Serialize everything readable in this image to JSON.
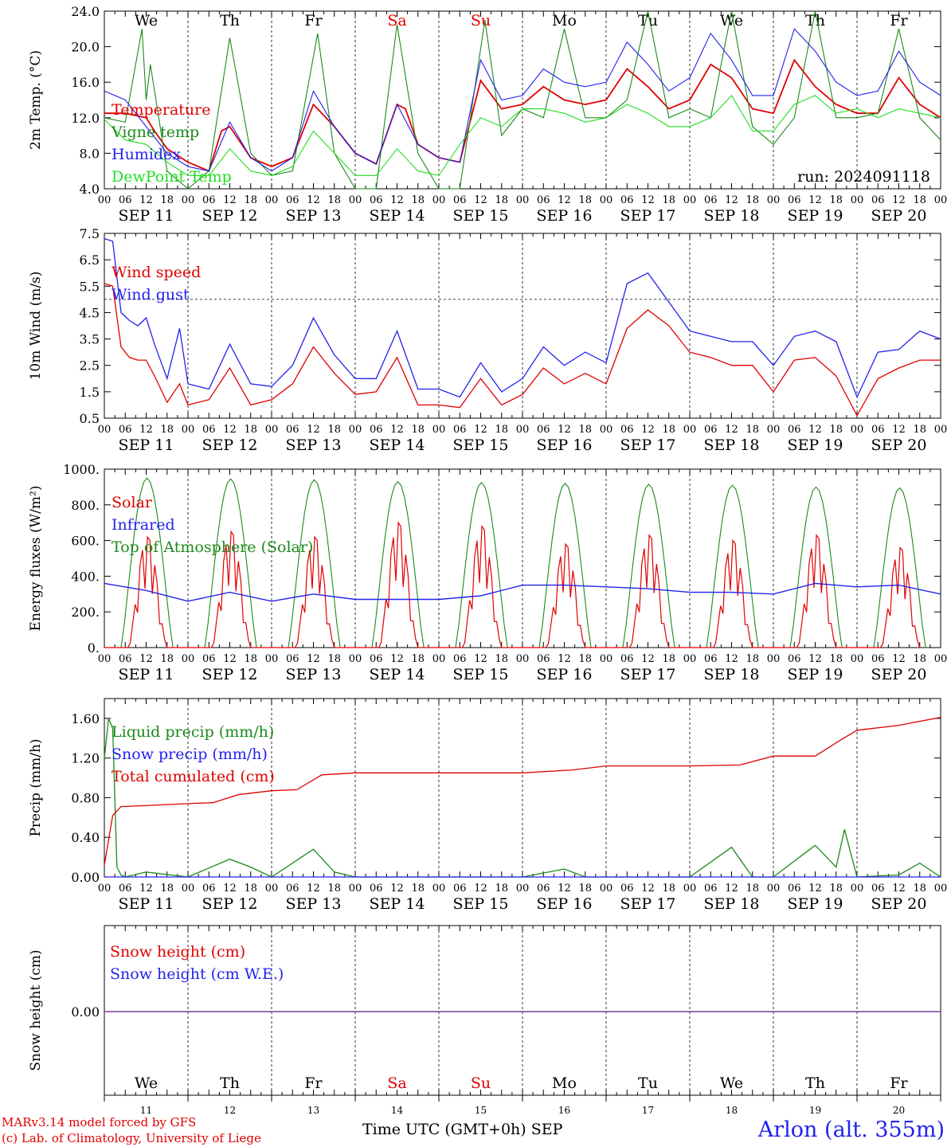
{
  "run_label": "run: 2024091118",
  "weekdays": [
    {
      "name": "We",
      "color": "#000000"
    },
    {
      "name": "Th",
      "color": "#000000"
    },
    {
      "name": "Fr",
      "color": "#000000"
    },
    {
      "name": "Sa",
      "color": "#e00000"
    },
    {
      "name": "Su",
      "color": "#e00000"
    },
    {
      "name": "Mo",
      "color": "#000000"
    },
    {
      "name": "Tu",
      "color": "#000000"
    },
    {
      "name": "We",
      "color": "#000000"
    },
    {
      "name": "Th",
      "color": "#000000"
    },
    {
      "name": "Fr",
      "color": "#000000"
    }
  ],
  "dates": [
    "SEP 11",
    "SEP 12",
    "SEP 13",
    "SEP 14",
    "SEP 15",
    "SEP 16",
    "SEP 17",
    "SEP 18",
    "SEP 19",
    "SEP 20"
  ],
  "day_numbers": [
    "11",
    "12",
    "13",
    "14",
    "15",
    "16",
    "17",
    "18",
    "19",
    "20"
  ],
  "hour_labels": [
    "00",
    "06",
    "12",
    "18"
  ],
  "footer": {
    "model": "MARv3.14 model forced by GFS",
    "lab": "(c) Lab. of Climatology, University of Liege",
    "axis": "Time UTC (GMT+0h) SEP",
    "station": "Arlon (alt. 355m)"
  },
  "chart_data": [
    {
      "type": "line",
      "ylabel": "2m Temp. (°C)",
      "ylim": [
        4,
        24
      ],
      "yticks": [
        "24.0",
        "20.0",
        "16.0",
        "12.0",
        "8.0",
        "4.0"
      ],
      "x_unit": "day offset from 2024-09-11 00 UTC",
      "series": [
        {
          "name": "Temperature",
          "color": "#e00000",
          "x": [
            0,
            0.25,
            0.5,
            0.6,
            0.75,
            1.0,
            1.25,
            1.4,
            1.5,
            1.75,
            2.0,
            2.25,
            2.5,
            2.75,
            3.0,
            3.25,
            3.5,
            3.6,
            3.75,
            4.0,
            4.25,
            4.5,
            4.75,
            5.0,
            5.25,
            5.5,
            5.75,
            6.0,
            6.25,
            6.5,
            6.75,
            7.0,
            7.25,
            7.5,
            7.75,
            8.0,
            8.25,
            8.5,
            8.75,
            9.0,
            9.25,
            9.5,
            9.75,
            10.0
          ],
          "y": [
            12.5,
            12.5,
            12.0,
            10.5,
            8.5,
            7.0,
            6.0,
            10.5,
            11.0,
            7.5,
            6.5,
            7.5,
            13.5,
            11.0,
            8.0,
            6.8,
            13.5,
            13.0,
            9.0,
            7.5,
            7.0,
            16.2,
            13.0,
            13.5,
            15.5,
            14.0,
            13.5,
            14.0,
            17.5,
            15.5,
            13.0,
            14.0,
            18.0,
            16.5,
            13.0,
            12.5,
            18.5,
            15.5,
            13.5,
            12.5,
            12.5,
            16.5,
            13.5,
            12.0
          ]
        },
        {
          "name": "Vigne temp",
          "color": "#1a8a1a",
          "x": [
            0,
            0.25,
            0.45,
            0.5,
            0.55,
            0.75,
            1.0,
            1.25,
            1.5,
            1.75,
            2.0,
            2.25,
            2.55,
            2.75,
            3.0,
            3.25,
            3.5,
            3.75,
            4.0,
            4.25,
            4.55,
            4.75,
            5.0,
            5.25,
            5.5,
            5.75,
            6.0,
            6.25,
            6.5,
            6.75,
            7.0,
            7.25,
            7.5,
            7.75,
            8.0,
            8.25,
            8.5,
            8.75,
            9.0,
            9.25,
            9.5,
            9.75,
            10.0
          ],
          "y": [
            12.0,
            11.5,
            22.0,
            14.0,
            18.0,
            6.0,
            4.0,
            6.0,
            21.0,
            8.0,
            5.5,
            6.0,
            21.5,
            8.0,
            4.0,
            4.0,
            22.5,
            8.0,
            4.0,
            4.0,
            23.0,
            10.0,
            13.0,
            12.0,
            22.0,
            12.0,
            12.0,
            14.0,
            24.0,
            12.0,
            13.0,
            12.0,
            24.0,
            11.0,
            9.0,
            12.0,
            24.0,
            12.0,
            12.0,
            12.5,
            22.0,
            12.0,
            9.5
          ]
        },
        {
          "name": "Humidex",
          "color": "#2222ee",
          "x": [
            0,
            0.25,
            0.5,
            0.75,
            1.0,
            1.25,
            1.5,
            1.75,
            2.0,
            2.25,
            2.5,
            2.75,
            3.0,
            3.25,
            3.5,
            3.75,
            4.0,
            4.25,
            4.5,
            4.75,
            5.0,
            5.25,
            5.5,
            5.75,
            6.0,
            6.25,
            6.5,
            6.75,
            7.0,
            7.25,
            7.5,
            7.75,
            8.0,
            8.25,
            8.5,
            8.75,
            9.0,
            9.25,
            9.5,
            9.75,
            10.0
          ],
          "y": [
            15.0,
            14.0,
            11.0,
            8.0,
            6.5,
            6.0,
            11.5,
            7.5,
            6.0,
            7.5,
            15.0,
            11.0,
            8.0,
            6.8,
            13.5,
            9.0,
            7.5,
            7.0,
            18.5,
            14.0,
            14.5,
            17.5,
            16.0,
            15.5,
            16.0,
            20.5,
            18.0,
            15.0,
            16.5,
            21.5,
            18.5,
            14.5,
            14.5,
            22.0,
            19.5,
            16.0,
            14.5,
            15.0,
            19.5,
            16.0,
            14.5
          ]
        },
        {
          "name": "DewPoint Temp",
          "color": "#22dd22",
          "x": [
            0,
            0.25,
            0.5,
            0.75,
            1.0,
            1.25,
            1.5,
            1.75,
            2.0,
            2.25,
            2.5,
            2.75,
            3.0,
            3.25,
            3.5,
            3.75,
            4.0,
            4.25,
            4.5,
            4.75,
            5.0,
            5.25,
            5.5,
            5.75,
            6.0,
            6.25,
            6.5,
            6.75,
            7.0,
            7.25,
            7.5,
            7.75,
            8.0,
            8.25,
            8.5,
            8.75,
            9.0,
            9.25,
            9.5,
            9.75,
            10.0
          ],
          "y": [
            11.8,
            9.5,
            9.0,
            7.0,
            5.5,
            5.5,
            8.5,
            6.0,
            5.5,
            6.5,
            10.5,
            8.0,
            5.5,
            5.5,
            8.5,
            6.0,
            5.5,
            9.0,
            12.0,
            11.0,
            13.0,
            13.0,
            12.5,
            11.5,
            12.0,
            13.5,
            12.5,
            11.0,
            11.0,
            12.0,
            14.5,
            10.5,
            10.5,
            13.5,
            14.5,
            12.5,
            13.0,
            12.0,
            13.0,
            12.5,
            12.0
          ]
        }
      ]
    },
    {
      "type": "line",
      "ylabel": "10m Wind (m/s)",
      "ylim": [
        0.5,
        7.5
      ],
      "yticks": [
        "7.5",
        "6.5",
        "5.5",
        "4.5",
        "3.5",
        "2.5",
        "1.5",
        "0.5"
      ],
      "reference_line": 5.0,
      "series": [
        {
          "name": "Wind speed",
          "color": "#e00000",
          "x": [
            0,
            0.1,
            0.2,
            0.3,
            0.4,
            0.5,
            0.6,
            0.75,
            0.9,
            1.0,
            1.25,
            1.5,
            1.75,
            2.0,
            2.25,
            2.5,
            2.75,
            3.0,
            3.25,
            3.5,
            3.75,
            4.0,
            4.25,
            4.5,
            4.75,
            5.0,
            5.25,
            5.5,
            5.75,
            6.0,
            6.25,
            6.5,
            6.75,
            7.0,
            7.25,
            7.5,
            7.75,
            8.0,
            8.25,
            8.5,
            8.75,
            9.0,
            9.25,
            9.5,
            9.75,
            10.0
          ],
          "y": [
            5.6,
            5.5,
            3.2,
            2.8,
            2.7,
            2.7,
            2.1,
            1.1,
            1.8,
            1.0,
            1.2,
            2.4,
            1.0,
            1.2,
            1.8,
            3.2,
            2.2,
            1.4,
            1.5,
            2.8,
            1.0,
            1.0,
            0.9,
            2.0,
            1.0,
            1.4,
            2.4,
            1.8,
            2.2,
            1.8,
            3.9,
            4.6,
            4.0,
            3.0,
            2.8,
            2.5,
            2.5,
            1.5,
            2.7,
            2.8,
            2.1,
            0.6,
            2.0,
            2.4,
            2.7,
            2.7
          ]
        },
        {
          "name": "Wind gust",
          "color": "#2222ee",
          "x": [
            0,
            0.1,
            0.2,
            0.3,
            0.4,
            0.5,
            0.6,
            0.75,
            0.9,
            1.0,
            1.25,
            1.5,
            1.75,
            2.0,
            2.25,
            2.5,
            2.75,
            3.0,
            3.25,
            3.5,
            3.75,
            4.0,
            4.25,
            4.5,
            4.75,
            5.0,
            5.25,
            5.5,
            5.75,
            6.0,
            6.25,
            6.5,
            6.75,
            7.0,
            7.25,
            7.5,
            7.75,
            8.0,
            8.25,
            8.5,
            8.75,
            9.0,
            9.25,
            9.5,
            9.75,
            10.0
          ],
          "y": [
            7.3,
            7.2,
            4.5,
            4.2,
            4.0,
            4.3,
            3.3,
            2.0,
            3.9,
            1.8,
            1.6,
            3.3,
            1.8,
            1.7,
            2.5,
            4.3,
            2.9,
            2.0,
            2.0,
            3.8,
            1.6,
            1.6,
            1.3,
            2.6,
            1.5,
            2.0,
            3.2,
            2.5,
            3.0,
            2.6,
            5.6,
            6.0,
            4.9,
            3.8,
            3.6,
            3.4,
            3.4,
            2.5,
            3.6,
            3.8,
            3.4,
            1.3,
            3.0,
            3.1,
            3.8,
            3.5
          ]
        }
      ]
    },
    {
      "type": "line",
      "ylabel": "Energy fluxes (W/m²)",
      "ylim": [
        0,
        1000
      ],
      "yticks": [
        "1000.",
        "800.",
        "600.",
        "400.",
        "200.",
        "0."
      ],
      "series": [
        {
          "name": "Solar",
          "color": "#e00000",
          "peaks": [
            620,
            650,
            620,
            700,
            680,
            580,
            630,
            600,
            630,
            560
          ]
        },
        {
          "name": "Infrared",
          "color": "#2222ee",
          "x": [
            0,
            0.5,
            1.0,
            1.5,
            2.0,
            2.5,
            3.0,
            3.5,
            4.0,
            4.5,
            5.0,
            5.5,
            6.0,
            6.5,
            7.0,
            7.5,
            8.0,
            8.5,
            9.0,
            9.5,
            10.0
          ],
          "y": [
            360,
            320,
            260,
            310,
            260,
            300,
            270,
            270,
            270,
            290,
            350,
            350,
            340,
            330,
            310,
            310,
            300,
            360,
            340,
            350,
            300
          ]
        },
        {
          "name": "Top of Atmosphere (Solar)",
          "color": "#1a8a1a",
          "peaks": [
            950,
            945,
            940,
            930,
            925,
            920,
            915,
            910,
            900,
            895
          ]
        }
      ]
    },
    {
      "type": "line",
      "ylabel": "Precip (mm/h)",
      "ylim": [
        0,
        1.8
      ],
      "yticks": [
        "1.60",
        "1.20",
        "0.80",
        "0.40",
        "0.00"
      ],
      "series": [
        {
          "name": "Liquid precip (mm/h)",
          "color": "#1a8a1a",
          "x": [
            0,
            0.05,
            0.1,
            0.15,
            0.2,
            0.25,
            0.5,
            1.0,
            1.5,
            1.75,
            2.0,
            2.5,
            2.75,
            3.0,
            4.0,
            5.0,
            5.5,
            5.75,
            6.0,
            7.0,
            7.5,
            7.75,
            8.0,
            8.5,
            8.75,
            8.85,
            9.0,
            9.5,
            9.75,
            10.0
          ],
          "y": [
            1.2,
            1.6,
            1.5,
            0.1,
            0.02,
            0.0,
            0.05,
            0.0,
            0.18,
            0.1,
            0.0,
            0.28,
            0.05,
            0.0,
            0.0,
            0.0,
            0.08,
            0.0,
            0.0,
            0.0,
            0.3,
            0.0,
            0.0,
            0.32,
            0.1,
            0.48,
            0.0,
            0.02,
            0.14,
            0.0
          ]
        },
        {
          "name": "Snow precip (mm/h)",
          "color": "#2222ee",
          "x": [
            0,
            10
          ],
          "y": [
            0,
            0
          ]
        },
        {
          "name": "Total cumulated (cm)",
          "color": "#e00000",
          "x": [
            0,
            0.1,
            0.2,
            0.5,
            1.0,
            1.3,
            1.6,
            2.0,
            2.3,
            2.6,
            3.0,
            4.0,
            5.0,
            5.6,
            6.0,
            7.0,
            7.6,
            8.0,
            8.5,
            8.8,
            9.0,
            9.5,
            10.0
          ],
          "y": [
            0.12,
            0.62,
            0.71,
            0.72,
            0.74,
            0.75,
            0.83,
            0.87,
            0.88,
            1.03,
            1.05,
            1.05,
            1.05,
            1.08,
            1.12,
            1.12,
            1.13,
            1.22,
            1.22,
            1.38,
            1.48,
            1.53,
            1.61
          ]
        }
      ]
    },
    {
      "type": "line",
      "ylabel": "Snow height (cm)",
      "yticks": [
        "0.00"
      ],
      "series": [
        {
          "name": "Snow height (cm)",
          "color": "#e00000",
          "x": [
            0,
            10
          ],
          "y": [
            0,
            0
          ]
        },
        {
          "name": "Snow height (cm W.E.)",
          "color": "#2222ee",
          "x": [
            0,
            10
          ],
          "y": [
            0,
            0
          ]
        }
      ]
    }
  ]
}
